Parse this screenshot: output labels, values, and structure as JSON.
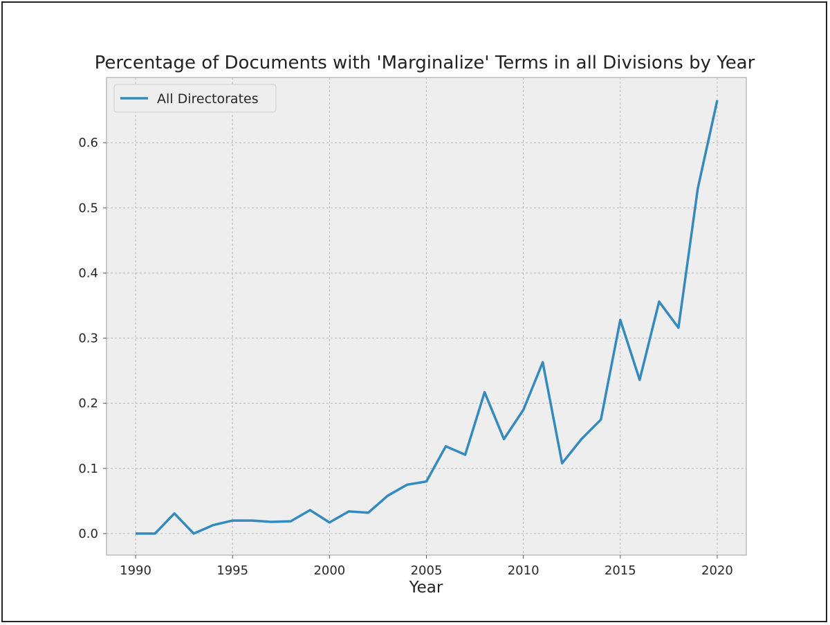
{
  "chart_data": {
    "type": "line",
    "title": "Percentage of Documents with 'Marginalize' Terms in all Divisions by Year",
    "xlabel": "Year",
    "ylabel": "",
    "xlim": [
      1988.5,
      2021.5
    ],
    "ylim": [
      -0.033,
      0.7
    ],
    "xticks": [
      1990,
      1995,
      2000,
      2005,
      2010,
      2015,
      2020
    ],
    "yticks": [
      0.0,
      0.1,
      0.2,
      0.3,
      0.4,
      0.5,
      0.6
    ],
    "ytick_labels": [
      "0.0",
      "0.1",
      "0.2",
      "0.3",
      "0.4",
      "0.5",
      "0.6"
    ],
    "grid": true,
    "legend_position": "top-left",
    "colors": {
      "line": "#348abd",
      "axes_bg": "#eeeeee",
      "grid": "#b8b8b8",
      "spine": "#bcbcbc"
    },
    "series": [
      {
        "name": "All Directorates",
        "x": [
          1990,
          1991,
          1992,
          1993,
          1994,
          1995,
          1996,
          1997,
          1998,
          1999,
          2000,
          2001,
          2002,
          2003,
          2004,
          2005,
          2006,
          2007,
          2008,
          2009,
          2010,
          2011,
          2012,
          2013,
          2014,
          2015,
          2016,
          2017,
          2018,
          2019,
          2020
        ],
        "y": [
          0.0,
          0.0,
          0.031,
          0.0,
          0.013,
          0.02,
          0.02,
          0.018,
          0.019,
          0.036,
          0.017,
          0.034,
          0.032,
          0.058,
          0.075,
          0.08,
          0.134,
          0.121,
          0.217,
          0.145,
          0.19,
          0.263,
          0.108,
          0.145,
          0.175,
          0.328,
          0.236,
          0.356,
          0.316,
          0.53,
          0.665
        ]
      }
    ]
  }
}
